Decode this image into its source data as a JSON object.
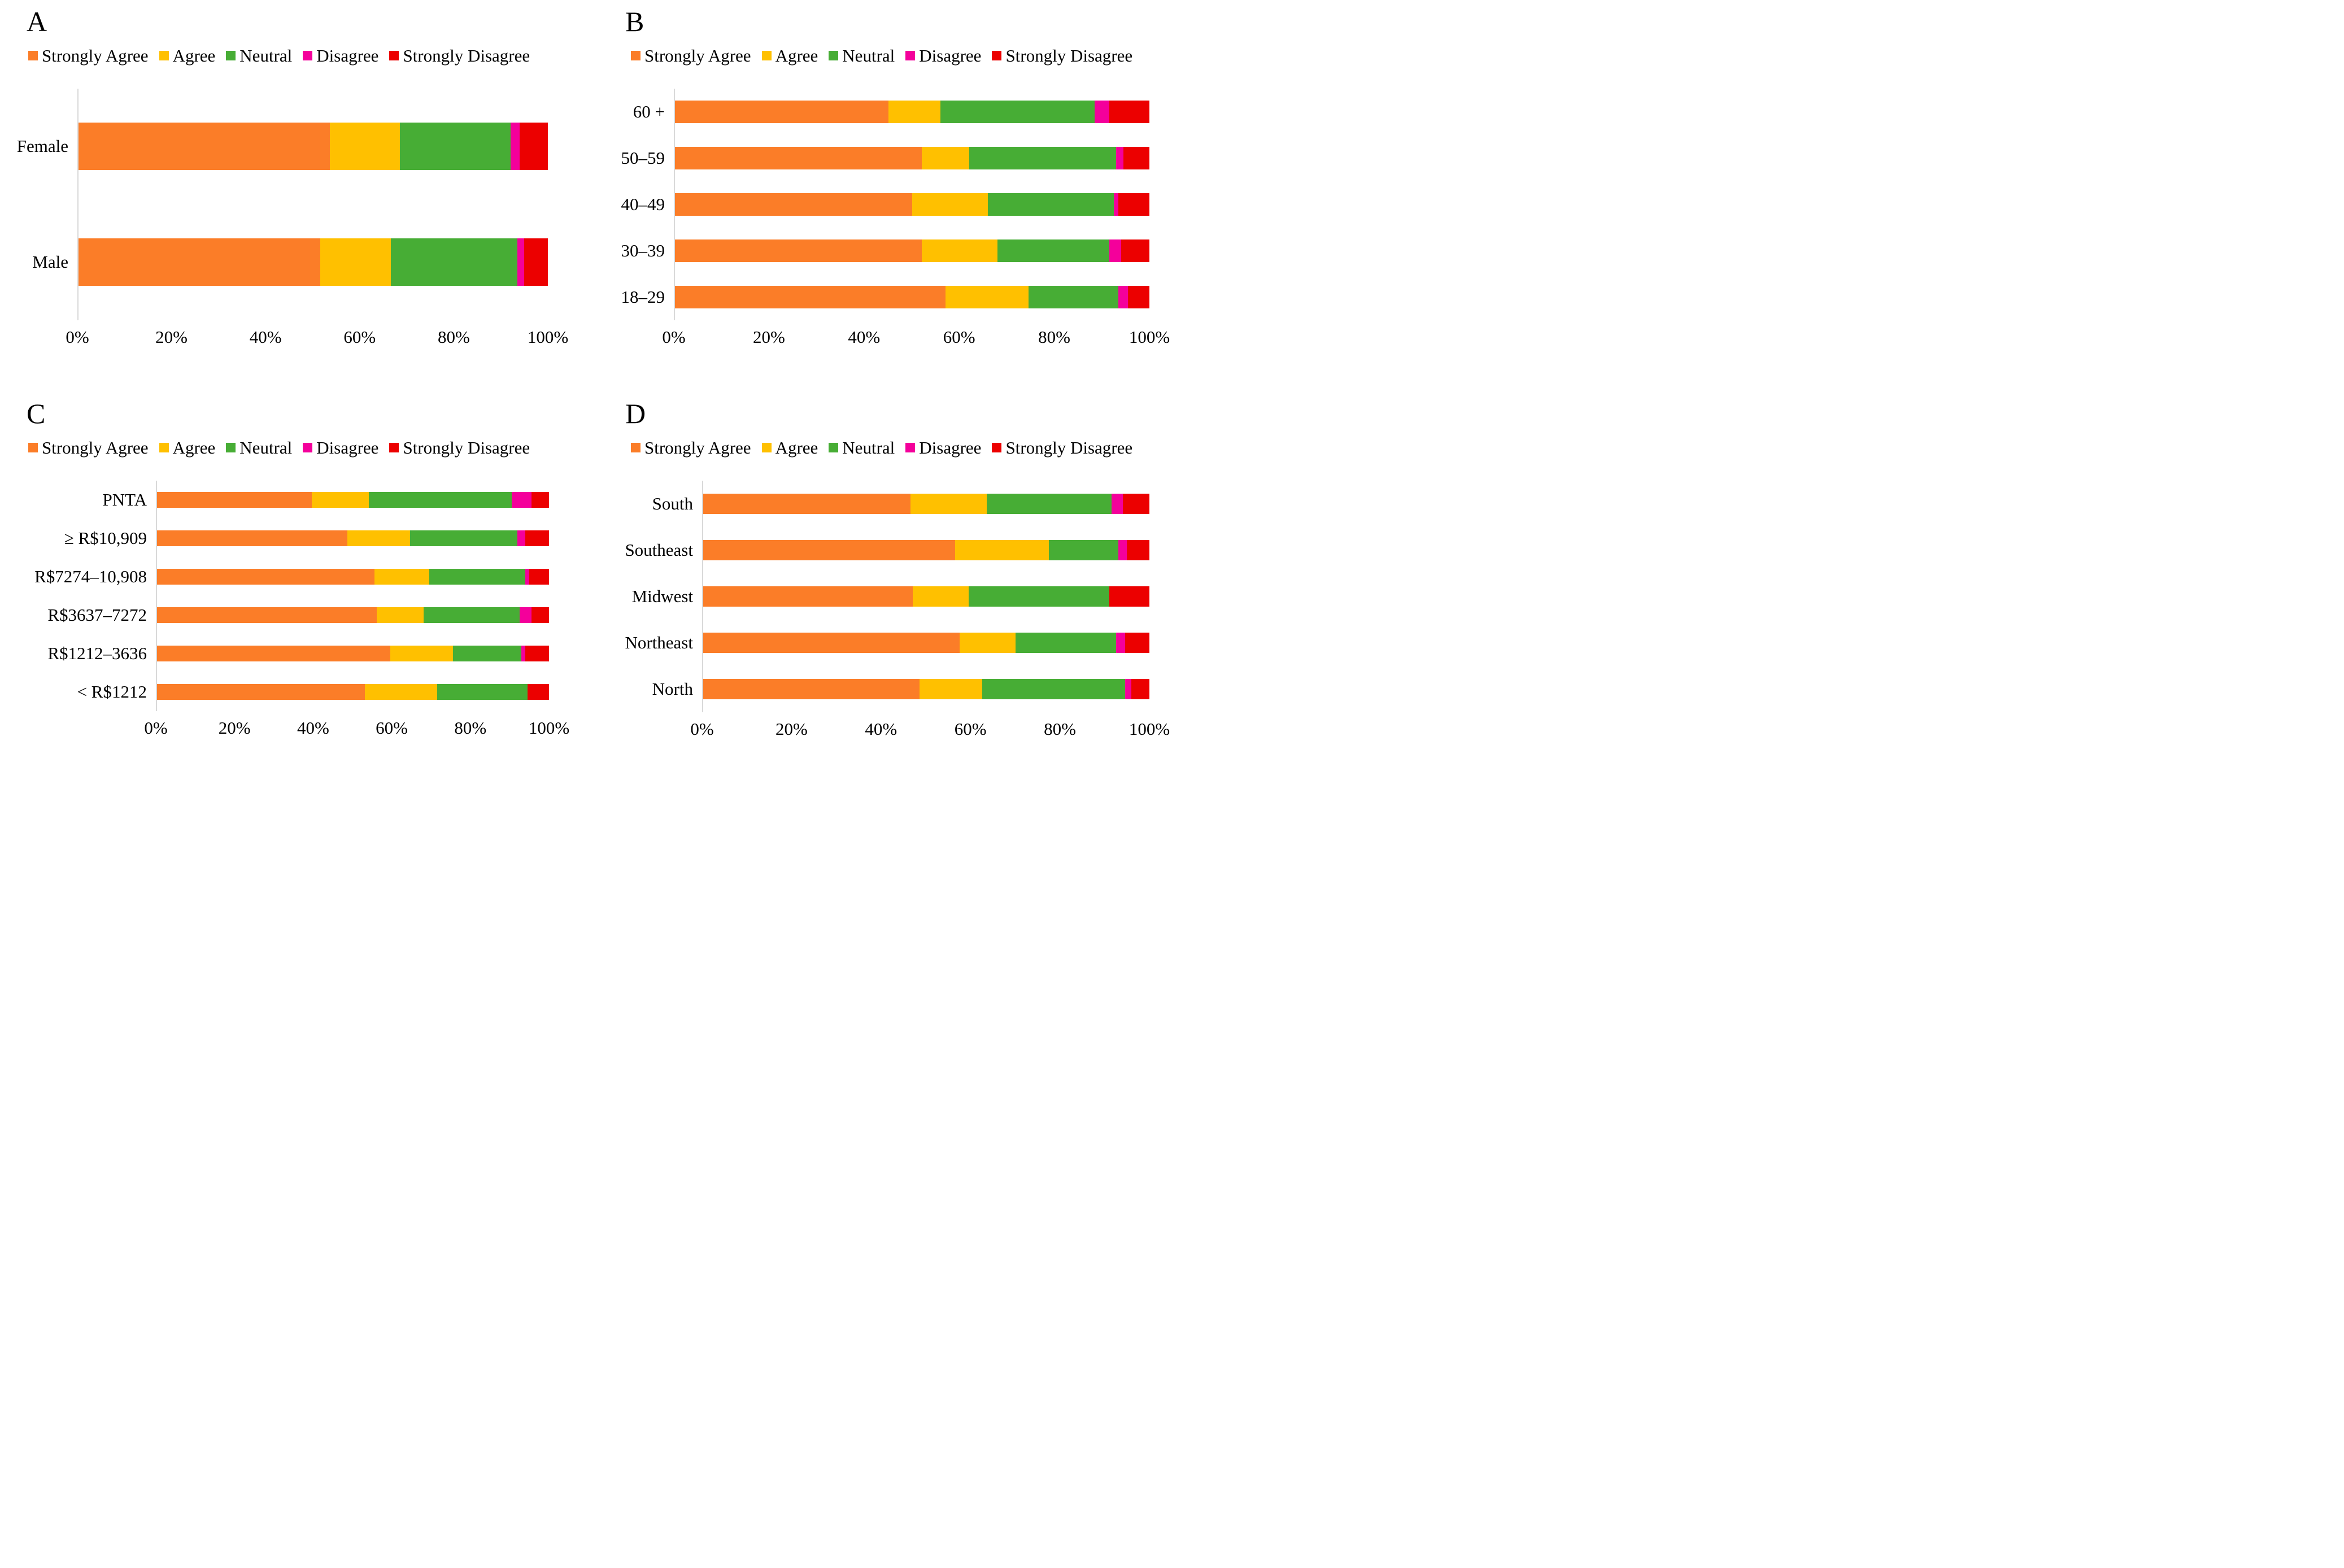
{
  "colors": {
    "strongly_agree": "#FB7D28",
    "agree": "#FFC000",
    "neutral": "#47AD35",
    "disagree": "#F4009B",
    "strongly_disagree": "#EC0000",
    "axis_line": "#D9D9D9",
    "text": "#000000"
  },
  "legend_labels": [
    "Strongly Agree",
    "Agree",
    "Neutral",
    "Disagree",
    "Strongly Disagree"
  ],
  "chart_data": [
    {
      "id": "A",
      "title": "A",
      "type": "bar",
      "orientation": "horizontal_stacked",
      "legend_position": "top",
      "grid": false,
      "xlim": [
        0,
        100
      ],
      "x_ticks": [
        "0%",
        "20%",
        "40%",
        "60%",
        "80%",
        "100%"
      ],
      "categories": [
        "Female",
        "Male"
      ],
      "series": [
        {
          "name": "Strongly Agree",
          "values": [
            53.5,
            51.5
          ]
        },
        {
          "name": "Agree",
          "values": [
            15,
            15
          ]
        },
        {
          "name": "Neutral",
          "values": [
            23.5,
            27
          ]
        },
        {
          "name": "Disagree",
          "values": [
            2,
            1.5
          ]
        },
        {
          "name": "Strongly Disagree",
          "values": [
            6,
            5
          ]
        }
      ]
    },
    {
      "id": "B",
      "title": "B",
      "type": "bar",
      "orientation": "horizontal_stacked",
      "legend_position": "top",
      "grid": false,
      "xlim": [
        0,
        100
      ],
      "x_ticks": [
        "0%",
        "20%",
        "40%",
        "60%",
        "80%",
        "100%"
      ],
      "categories": [
        "60 +",
        "50–59",
        "40–49",
        "30–39",
        "18–29"
      ],
      "series": [
        {
          "name": "Strongly Agree",
          "values": [
            45,
            52,
            50,
            52,
            57
          ]
        },
        {
          "name": "Agree",
          "values": [
            11,
            10,
            16,
            16,
            17.5
          ]
        },
        {
          "name": "Neutral",
          "values": [
            32.5,
            31,
            26.5,
            23.5,
            19
          ]
        },
        {
          "name": "Disagree",
          "values": [
            3,
            1.5,
            1,
            2.5,
            2
          ]
        },
        {
          "name": "Strongly Disagree",
          "values": [
            8.5,
            5.5,
            6.5,
            6,
            4.5
          ]
        }
      ]
    },
    {
      "id": "C",
      "title": "C",
      "type": "bar",
      "orientation": "horizontal_stacked",
      "legend_position": "top",
      "grid": false,
      "xlim": [
        0,
        100
      ],
      "x_ticks": [
        "0%",
        "20%",
        "40%",
        "60%",
        "80%",
        "100%"
      ],
      "categories": [
        "PNTA",
        "≥ R$10,909",
        "R$7274–10,908",
        "R$3637–7272",
        "R$1212–3636",
        "< R$1212"
      ],
      "series": [
        {
          "name": "Strongly Agree",
          "values": [
            39.5,
            48.5,
            55.5,
            56,
            59.5,
            53
          ]
        },
        {
          "name": "Agree",
          "values": [
            14.5,
            16,
            14,
            12,
            16,
            18.5
          ]
        },
        {
          "name": "Neutral",
          "values": [
            36.5,
            27.5,
            24.5,
            24.5,
            17.5,
            23
          ]
        },
        {
          "name": "Disagree",
          "values": [
            5,
            2,
            1,
            3,
            1,
            0
          ]
        },
        {
          "name": "Strongly Disagree",
          "values": [
            4.5,
            6,
            5,
            4.5,
            6,
            5.5
          ]
        }
      ]
    },
    {
      "id": "D",
      "title": "D",
      "type": "bar",
      "orientation": "horizontal_stacked",
      "legend_position": "top",
      "grid": false,
      "xlim": [
        0,
        100
      ],
      "x_ticks": [
        "0%",
        "20%",
        "40%",
        "60%",
        "80%",
        "100%"
      ],
      "categories": [
        "South",
        "Southeast",
        "Midwest",
        "Northeast",
        "North"
      ],
      "series": [
        {
          "name": "Strongly Agree",
          "values": [
            46.5,
            56.5,
            47,
            57.5,
            48.5
          ]
        },
        {
          "name": "Agree",
          "values": [
            17,
            21,
            12.5,
            12.5,
            14
          ]
        },
        {
          "name": "Neutral",
          "values": [
            28,
            15.5,
            31.5,
            22.5,
            32
          ]
        },
        {
          "name": "Disagree",
          "values": [
            2.5,
            2,
            0,
            2,
            1.5
          ]
        },
        {
          "name": "Strongly Disagree",
          "values": [
            6,
            5,
            9,
            5.5,
            4
          ]
        }
      ]
    }
  ]
}
